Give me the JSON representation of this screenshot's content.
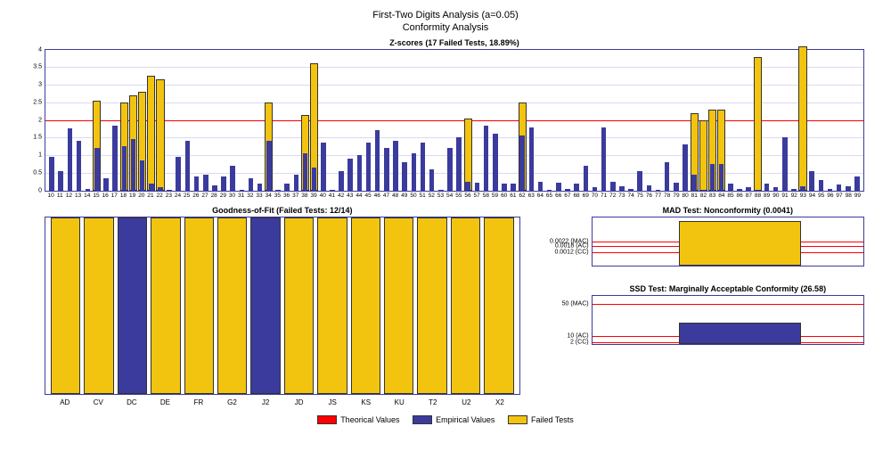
{
  "title_line1": "First-Two Digits Analysis (a=0.05)",
  "title_line2": "Conformity Analysis",
  "colors": {
    "empirical": "#3b3b9e",
    "failed": "#f2c40f",
    "theoretical": "#ff0000",
    "border": "#3b3b9e",
    "grid": "#dadaf0",
    "background": "#ffffff"
  },
  "zscores": {
    "title": "Z-scores (17 Failed Tests, 18.89%)",
    "ylim": [
      0,
      4
    ],
    "ytick_step": 0.5,
    "threshold": 2.0,
    "categories": [
      10,
      11,
      12,
      13,
      14,
      15,
      16,
      17,
      18,
      19,
      20,
      21,
      22,
      23,
      24,
      25,
      26,
      27,
      28,
      29,
      30,
      31,
      32,
      33,
      34,
      35,
      36,
      37,
      38,
      39,
      40,
      41,
      42,
      43,
      44,
      45,
      46,
      47,
      48,
      49,
      50,
      51,
      52,
      53,
      54,
      55,
      56,
      57,
      58,
      59,
      60,
      61,
      62,
      63,
      64,
      65,
      66,
      67,
      68,
      69,
      70,
      71,
      72,
      73,
      74,
      75,
      76,
      77,
      78,
      79,
      80,
      81,
      82,
      83,
      84,
      85,
      86,
      87,
      88,
      89,
      90,
      91,
      92,
      93,
      94,
      95,
      96,
      97,
      98,
      99
    ],
    "empirical": [
      0.95,
      0.55,
      1.75,
      1.4,
      0.05,
      1.2,
      0.35,
      1.85,
      1.25,
      1.45,
      0.85,
      0.2,
      0.08,
      0.02,
      0.95,
      1.4,
      0.4,
      0.45,
      0.15,
      0.4,
      0.7,
      0.02,
      0.35,
      0.2,
      1.4,
      0.02,
      0.2,
      0.45,
      1.05,
      0.65,
      1.35,
      0.02,
      0.55,
      0.9,
      1.0,
      1.35,
      1.7,
      1.2,
      1.4,
      0.8,
      1.05,
      1.35,
      0.6,
      0.02,
      1.2,
      1.52,
      0.25,
      0.22,
      1.85,
      1.6,
      0.18,
      0.18,
      1.55,
      1.8,
      0.25,
      0.02,
      0.22,
      0.05,
      0.18,
      0.7,
      0.1,
      1.8,
      0.25,
      0.12,
      0.03,
      0.55,
      0.15,
      0.02,
      0.8,
      0.22,
      1.3,
      0.45,
      0.02,
      0.75,
      0.75,
      0.2,
      0.05,
      0.1,
      0.02,
      0.2,
      0.1,
      1.5,
      0.05,
      0.12,
      0.55,
      0.3,
      0.05,
      0.17,
      0.12,
      0.4
    ],
    "failed": [
      null,
      null,
      null,
      null,
      null,
      2.55,
      null,
      null,
      2.5,
      2.7,
      2.8,
      3.25,
      3.15,
      null,
      null,
      null,
      null,
      null,
      null,
      null,
      null,
      null,
      null,
      null,
      2.5,
      null,
      null,
      null,
      2.15,
      3.6,
      null,
      null,
      null,
      null,
      null,
      null,
      null,
      null,
      null,
      null,
      null,
      null,
      null,
      null,
      null,
      null,
      2.05,
      null,
      null,
      null,
      null,
      null,
      2.5,
      null,
      null,
      null,
      null,
      null,
      null,
      null,
      null,
      null,
      null,
      null,
      null,
      null,
      null,
      null,
      null,
      null,
      null,
      2.2,
      2.0,
      2.3,
      2.3,
      null,
      null,
      null,
      3.8,
      null,
      null,
      null,
      null,
      4.1,
      null,
      null,
      null,
      null,
      null,
      null
    ]
  },
  "gof": {
    "title": "Goodness-of-Fit (Failed Tests: 12/14)",
    "categories": [
      "AD",
      "CV",
      "DC",
      "DE",
      "FR",
      "G2",
      "J2",
      "JD",
      "JS",
      "KS",
      "KU",
      "T2",
      "U2",
      "X2"
    ],
    "failed": [
      true,
      true,
      false,
      true,
      true,
      true,
      false,
      true,
      true,
      true,
      true,
      true,
      true,
      true
    ]
  },
  "mad": {
    "title": "MAD Test: Nonconformity (0.0041)",
    "chart_ymax": 0.0045,
    "thresholds": [
      {
        "label": "0.0022 (MAC)",
        "value": 0.0022
      },
      {
        "label": "0.0018 (AC)",
        "value": 0.0018
      },
      {
        "label": "0.0012 (CC)",
        "value": 0.0012
      }
    ],
    "bar_value": 0.0041,
    "bar_color": "#f2c40f",
    "bar_left_pct": 32,
    "bar_width_pct": 45
  },
  "ssd": {
    "title": "SSD Test: Marginally Acceptable Conformity (26.58)",
    "chart_ymax": 60,
    "thresholds": [
      {
        "label": "50 (MAC)",
        "value": 50
      },
      {
        "label": "10 (AC)",
        "value": 10
      },
      {
        "label": "2 (CC)",
        "value": 2
      }
    ],
    "bar_value": 26.58,
    "bar_color": "#3b3b9e",
    "bar_left_pct": 32,
    "bar_width_pct": 45
  },
  "legend": {
    "theoretical": "Theorical Values",
    "empirical": "Empirical Values",
    "failed": "Failed Tests"
  }
}
